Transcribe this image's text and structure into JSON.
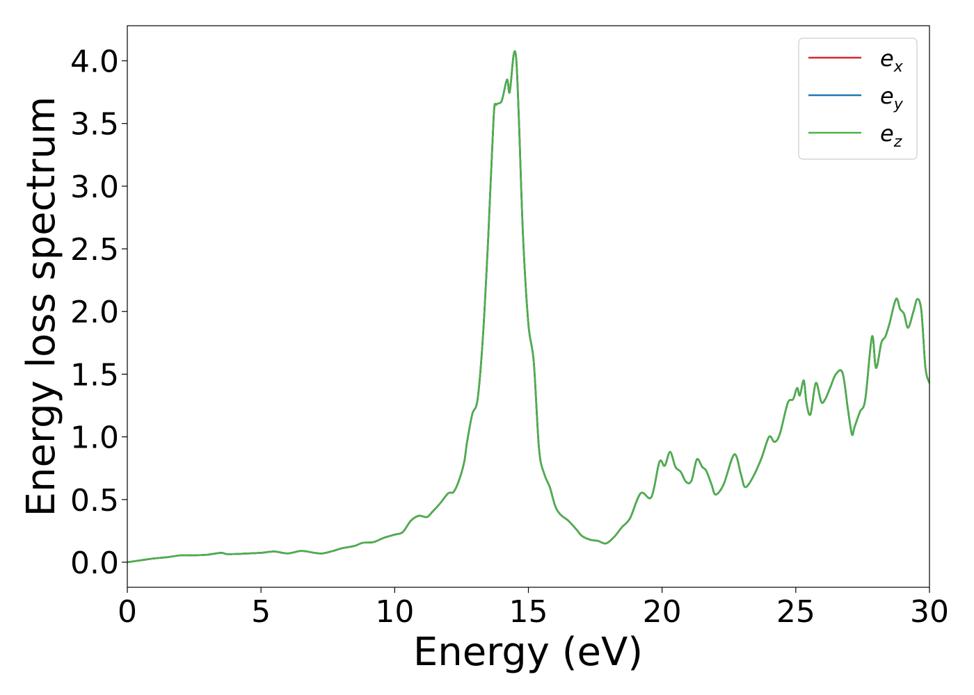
{
  "chart_data": {
    "type": "line",
    "title": "",
    "xlabel": "Energy (eV)",
    "ylabel": "Energy loss spectrum",
    "xlim": [
      0,
      30
    ],
    "ylim": [
      -0.2,
      4.28
    ],
    "x_ticks": [
      0,
      5,
      10,
      15,
      20,
      25,
      30
    ],
    "x_tick_labels": [
      "0",
      "5",
      "10",
      "15",
      "20",
      "25",
      "30"
    ],
    "y_ticks": [
      0.0,
      0.5,
      1.0,
      1.5,
      2.0,
      2.5,
      3.0,
      3.5,
      4.0
    ],
    "y_tick_labels": [
      "0.0",
      "0.5",
      "1.0",
      "1.5",
      "2.0",
      "2.5",
      "3.0",
      "3.5",
      "4.0"
    ],
    "grid": false,
    "legend_position": "top-right",
    "series": [
      {
        "name": "e_x",
        "label_base": "e",
        "label_sub": "x",
        "color": "#d62728"
      },
      {
        "name": "e_y",
        "label_base": "e",
        "label_sub": "y",
        "color": "#1f77b4"
      },
      {
        "name": "e_z",
        "label_base": "e",
        "label_sub": "z",
        "color": "#4daf4a"
      }
    ],
    "x": [
      0,
      0.5,
      1.0,
      1.5,
      2.0,
      2.5,
      3.0,
      3.5,
      3.7,
      4.0,
      4.5,
      5.0,
      5.5,
      6.0,
      6.5,
      7.0,
      7.3,
      7.7,
      8.0,
      8.5,
      8.8,
      9.2,
      9.6,
      10.0,
      10.3,
      10.6,
      10.9,
      11.2,
      11.4,
      11.7,
      12.0,
      12.2,
      12.4,
      12.6,
      12.7,
      12.9,
      13.1,
      13.3,
      13.5,
      13.7,
      13.8,
      14.0,
      14.2,
      14.3,
      14.45,
      14.55,
      14.65,
      14.8,
      15.0,
      15.2,
      15.4,
      15.6,
      15.8,
      16.0,
      16.2,
      16.5,
      16.8,
      17.0,
      17.3,
      17.6,
      17.9,
      18.2,
      18.5,
      18.8,
      19.2,
      19.6,
      19.9,
      20.1,
      20.3,
      20.5,
      20.7,
      20.9,
      21.1,
      21.3,
      21.5,
      21.65,
      21.85,
      22.0,
      22.3,
      22.7,
      22.95,
      23.1,
      23.35,
      23.7,
      24.0,
      24.2,
      24.4,
      24.7,
      24.9,
      25.05,
      25.15,
      25.3,
      25.4,
      25.55,
      25.75,
      25.95,
      26.1,
      26.3,
      26.5,
      26.75,
      26.95,
      27.1,
      27.2,
      27.4,
      27.6,
      27.85,
      28.0,
      28.2,
      28.35,
      28.5,
      28.75,
      28.9,
      29.05,
      29.2,
      29.4,
      29.55,
      29.7,
      29.85,
      30.0
    ],
    "y": [
      0.0,
      0.015,
      0.03,
      0.04,
      0.055,
      0.055,
      0.06,
      0.075,
      0.065,
      0.065,
      0.07,
      0.075,
      0.085,
      0.07,
      0.09,
      0.075,
      0.07,
      0.09,
      0.11,
      0.13,
      0.155,
      0.16,
      0.195,
      0.22,
      0.24,
      0.33,
      0.37,
      0.36,
      0.4,
      0.47,
      0.55,
      0.56,
      0.65,
      0.8,
      0.95,
      1.18,
      1.3,
      1.8,
      2.6,
      3.55,
      3.65,
      3.68,
      3.85,
      3.75,
      4.05,
      4.0,
      3.5,
      2.6,
      1.9,
      1.6,
      0.9,
      0.7,
      0.6,
      0.45,
      0.38,
      0.33,
      0.26,
      0.21,
      0.18,
      0.17,
      0.15,
      0.2,
      0.28,
      0.35,
      0.55,
      0.52,
      0.8,
      0.77,
      0.88,
      0.76,
      0.72,
      0.64,
      0.65,
      0.82,
      0.76,
      0.73,
      0.62,
      0.54,
      0.62,
      0.86,
      0.7,
      0.6,
      0.66,
      0.82,
      1.0,
      0.96,
      1.02,
      1.27,
      1.3,
      1.39,
      1.33,
      1.45,
      1.27,
      1.18,
      1.43,
      1.28,
      1.3,
      1.4,
      1.5,
      1.51,
      1.22,
      1.02,
      1.08,
      1.2,
      1.3,
      1.8,
      1.55,
      1.75,
      1.8,
      1.9,
      2.1,
      2.02,
      1.98,
      1.87,
      2.0,
      2.1,
      2.0,
      1.55,
      1.43
    ]
  }
}
